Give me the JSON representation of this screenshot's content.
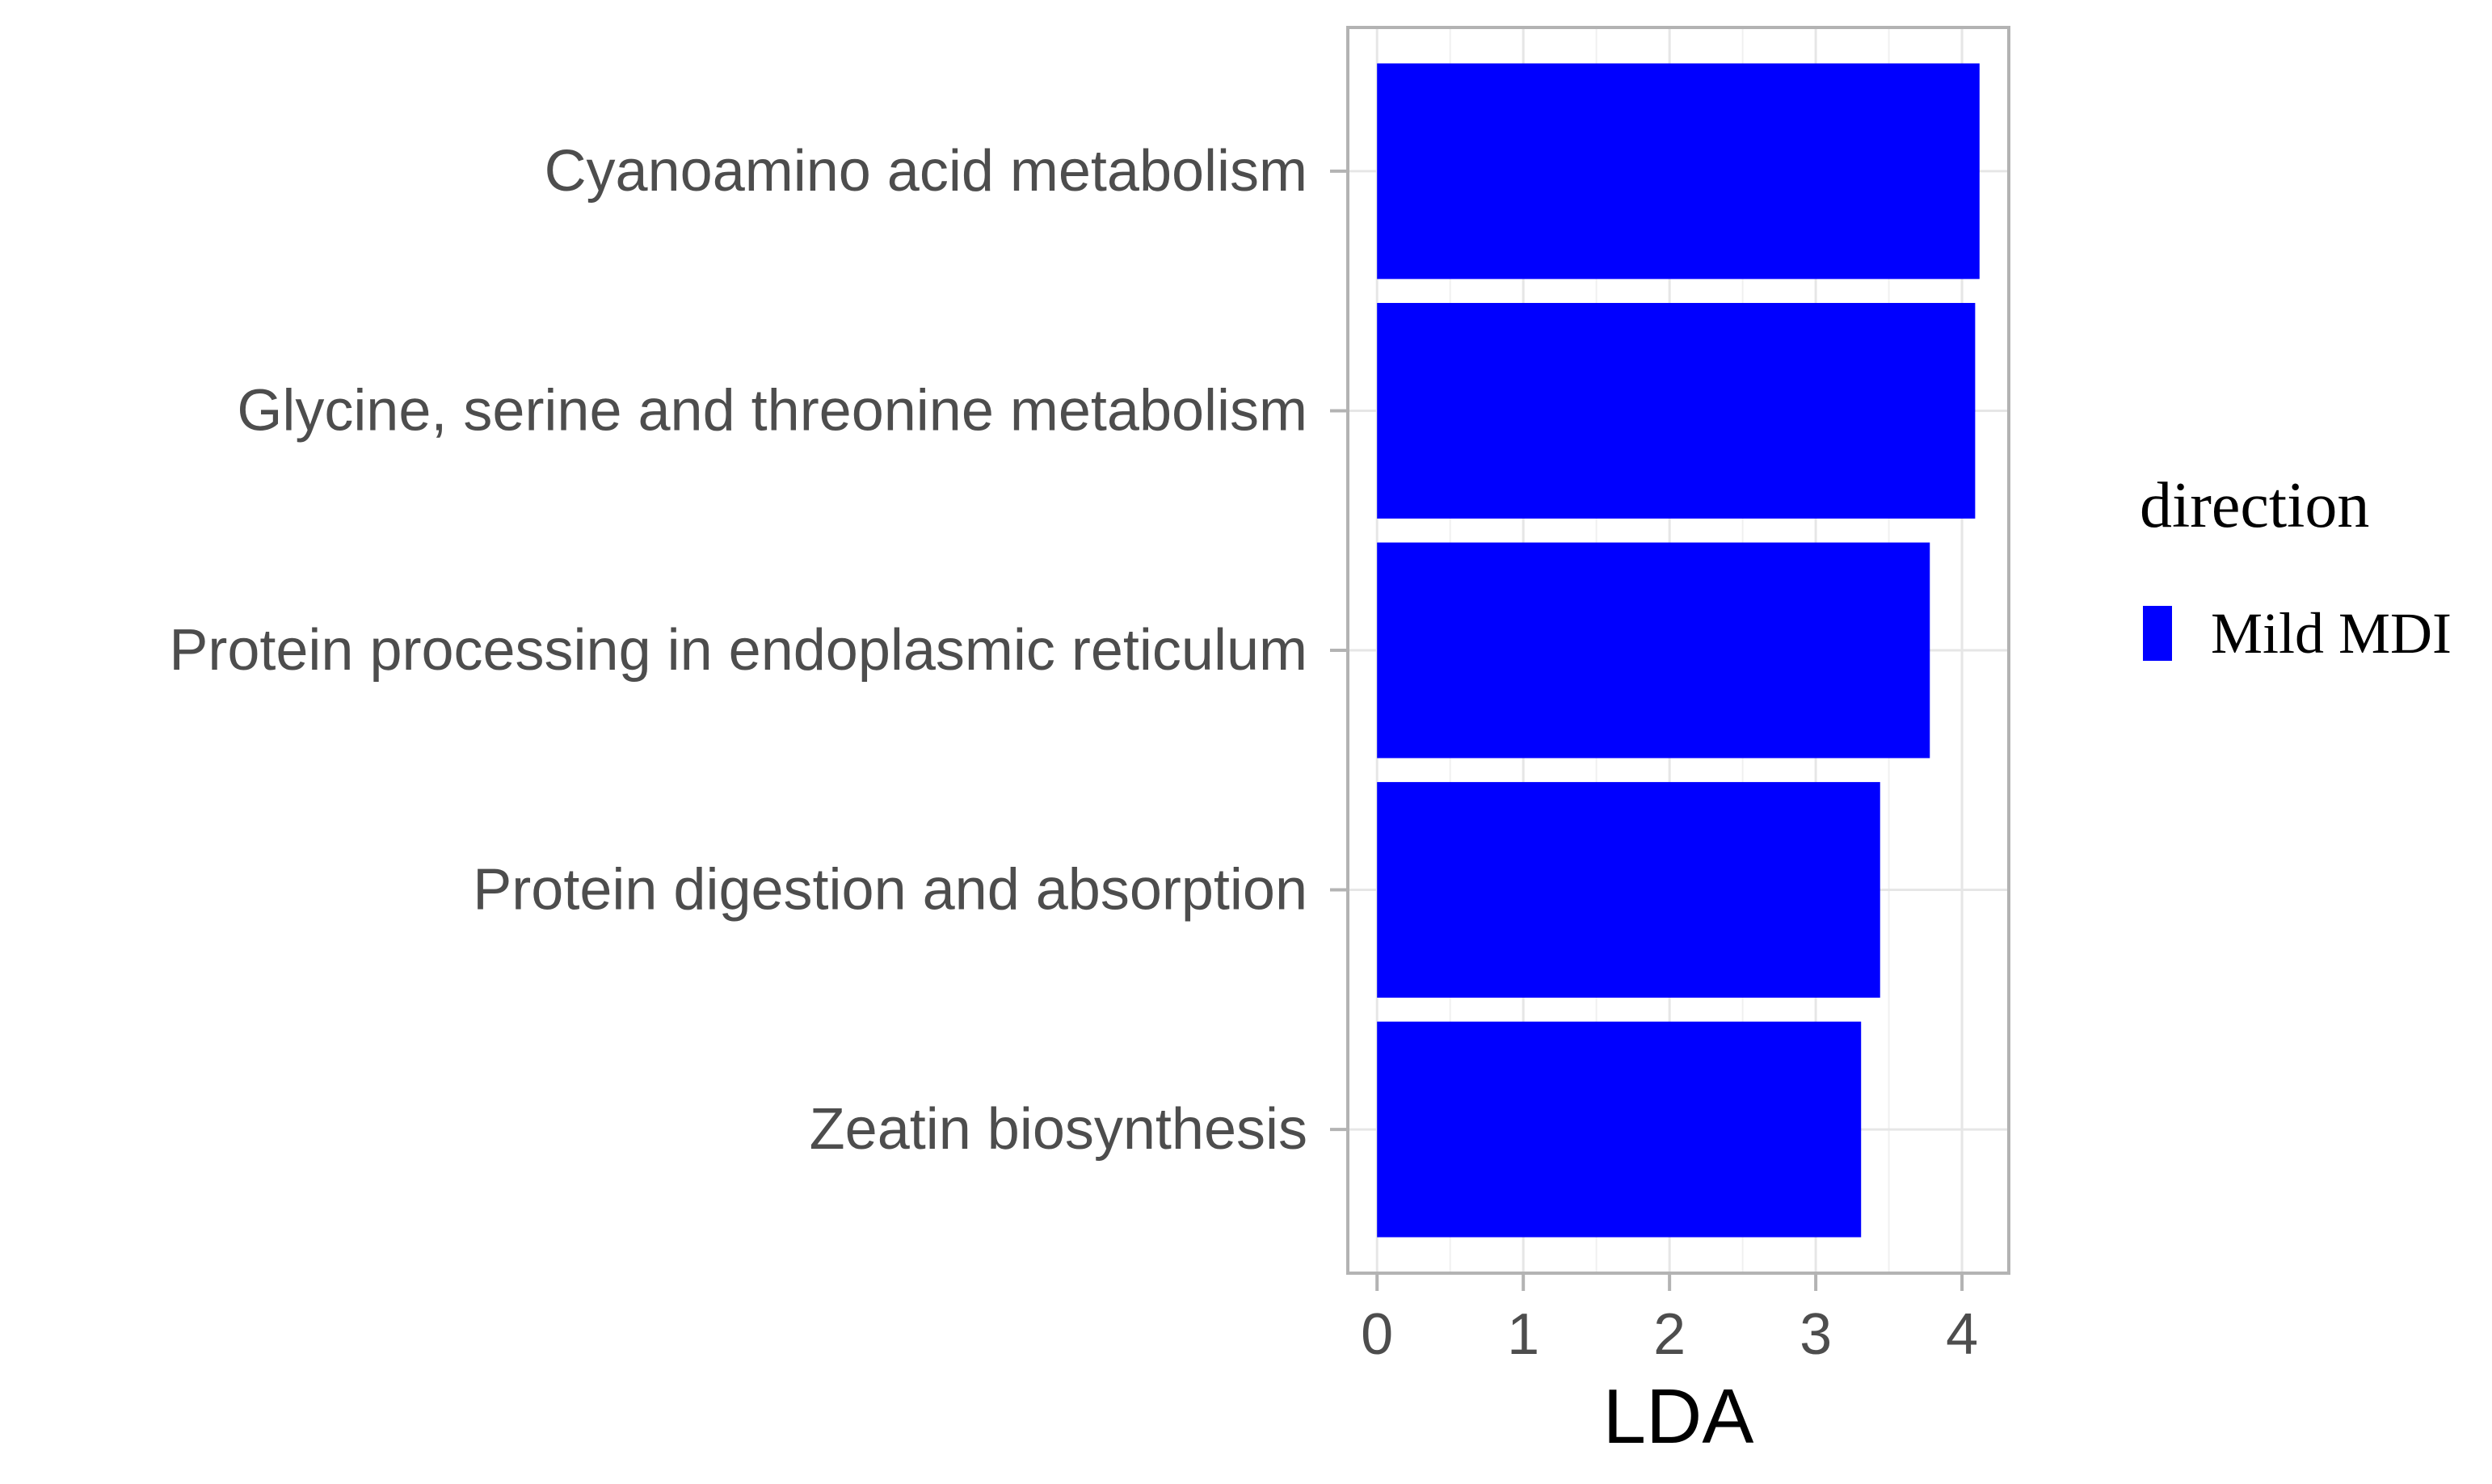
{
  "chart_data": {
    "type": "bar",
    "orientation": "horizontal",
    "categories": [
      "Cyanoamino acid metabolism",
      "Glycine, serine and threonine metabolism",
      "Protein processing in endoplasmic reticulum",
      "Protein digestion and absorption",
      "Zeatin biosynthesis"
    ],
    "series": [
      {
        "name": "Mild MDI",
        "color": "#0000ff",
        "values": [
          4.12,
          4.09,
          3.78,
          3.44,
          3.31
        ]
      }
    ],
    "xlabel": "LDA",
    "ylabel": "",
    "xlim": [
      -0.2,
      4.32
    ],
    "xticks": [
      0,
      1,
      2,
      3,
      4
    ],
    "grid": true,
    "legend": {
      "title": "direction",
      "position": "right"
    }
  }
}
